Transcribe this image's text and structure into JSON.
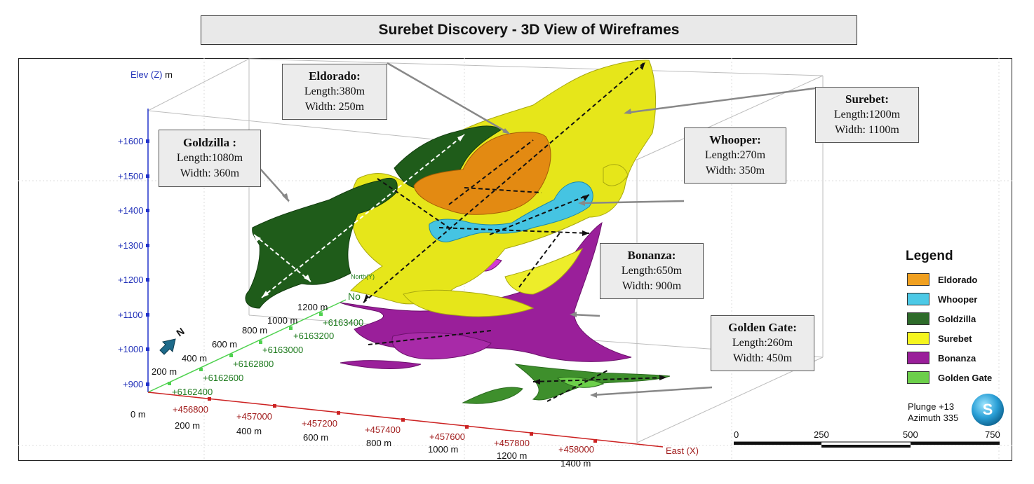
{
  "title": "Surebet Discovery - 3D View of Wireframes",
  "callouts": {
    "eldorado": {
      "name": "Eldorado:",
      "length": "Length:380m",
      "width": "Width: 250m"
    },
    "goldzilla": {
      "name": "Goldzilla :",
      "length": "Length:1080m",
      "width": "Width: 360m"
    },
    "surebet": {
      "name": "Surebet:",
      "length": "Length:1200m",
      "width": "Width: 1100m"
    },
    "whooper": {
      "name": "Whooper:",
      "length": "Length:270m",
      "width": "Width: 350m"
    },
    "bonanza": {
      "name": "Bonanza:",
      "length": "Length:650m",
      "width": "Width: 900m"
    },
    "golden_gate": {
      "name": "Golden Gate:",
      "length": "Length:260m",
      "width": "Width: 450m"
    }
  },
  "legend": {
    "title": "Legend",
    "items": [
      {
        "label": "Eldorado",
        "color": "#f0a020"
      },
      {
        "label": "Whooper",
        "color": "#4cc9e6"
      },
      {
        "label": "Goldzilla",
        "color": "#2e6b2a"
      },
      {
        "label": "Surebet",
        "color": "#f5f51e"
      },
      {
        "label": "Bonanza",
        "color": "#9a1f9a"
      },
      {
        "label": "Golden Gate",
        "color": "#6ccf4a"
      }
    ]
  },
  "view": {
    "plunge": "Plunge +13",
    "azimuth": "Azimuth 335",
    "logo_letter": "S"
  },
  "scale_bar": {
    "labels": [
      "0",
      "250",
      "500",
      "750"
    ]
  },
  "axes": {
    "elev_label": "Elev (Z)",
    "elev_unit": "m",
    "elev_ticks": [
      "+1600",
      "+1500",
      "+1400",
      "+1300",
      "+1200",
      "+1100",
      "+1000",
      "+900"
    ],
    "north_label": "North(Y)",
    "north_ticks": [
      "+6162400",
      "+6162600",
      "+6162800",
      "+6163000",
      "+6163200",
      "+6163400"
    ],
    "north_distances": [
      "200 m",
      "400 m",
      "600 m",
      "800 m",
      "1000 m",
      "1200 m"
    ],
    "east_label": "East (X)",
    "east_ticks": [
      "+456800",
      "+457000",
      "+457200",
      "+457400",
      "+457600",
      "+457800",
      "+458000"
    ],
    "east_distances": [
      "200 m",
      "400 m",
      "600 m",
      "800 m",
      "1000 m",
      "1200 m",
      "1400 m"
    ],
    "origin_label": "0 m",
    "no_label": "No",
    "north_arrow": "N"
  }
}
